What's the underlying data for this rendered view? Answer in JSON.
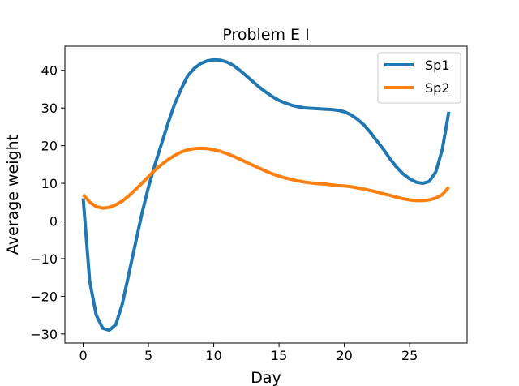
{
  "chart_data": {
    "type": "line",
    "title": "Problem E I",
    "xlabel": "Day",
    "ylabel": "Average weight",
    "xlim": [
      -1.4,
      29.4
    ],
    "ylim": [
      -32.4,
      46.4
    ],
    "x_ticks": [
      0,
      5,
      10,
      15,
      20,
      25
    ],
    "y_ticks": [
      -30,
      -20,
      -10,
      0,
      10,
      20,
      30,
      40
    ],
    "x_tick_labels": [
      "0",
      "5",
      "10",
      "15",
      "20",
      "25"
    ],
    "y_tick_labels": [
      "−30",
      "−20",
      "−10",
      "0",
      "10",
      "20",
      "30",
      "40"
    ],
    "grid": false,
    "legend_position": "upper right",
    "series": [
      {
        "name": "Sp1",
        "color": "#1f77b4",
        "points": [
          [
            0,
            6
          ],
          [
            0.5,
            -16
          ],
          [
            1,
            -25
          ],
          [
            1.5,
            -28.5
          ],
          [
            2,
            -29
          ],
          [
            2.5,
            -27.5
          ],
          [
            3,
            -22
          ],
          [
            3.5,
            -14
          ],
          [
            4,
            -6
          ],
          [
            4.5,
            2
          ],
          [
            5,
            9
          ],
          [
            5.5,
            15
          ],
          [
            6,
            20.5
          ],
          [
            6.5,
            26
          ],
          [
            7,
            31
          ],
          [
            7.5,
            35
          ],
          [
            8,
            38.5
          ],
          [
            8.5,
            40.5
          ],
          [
            9,
            41.8
          ],
          [
            9.5,
            42.5
          ],
          [
            10,
            42.8
          ],
          [
            10.5,
            42.7
          ],
          [
            11,
            42.2
          ],
          [
            11.5,
            41.3
          ],
          [
            12,
            40
          ],
          [
            12.5,
            38.5
          ],
          [
            13,
            37
          ],
          [
            13.5,
            35.5
          ],
          [
            14,
            34.2
          ],
          [
            14.5,
            33
          ],
          [
            15,
            32
          ],
          [
            15.5,
            31.3
          ],
          [
            16,
            30.7
          ],
          [
            16.5,
            30.3
          ],
          [
            17,
            30
          ],
          [
            17.5,
            29.9
          ],
          [
            18,
            29.8
          ],
          [
            18.5,
            29.7
          ],
          [
            19,
            29.6
          ],
          [
            19.5,
            29.4
          ],
          [
            20,
            29
          ],
          [
            20.5,
            28.2
          ],
          [
            21,
            27
          ],
          [
            21.5,
            25.5
          ],
          [
            22,
            23.5
          ],
          [
            22.5,
            21.2
          ],
          [
            23,
            19
          ],
          [
            23.5,
            16.5
          ],
          [
            24,
            14.3
          ],
          [
            24.5,
            12.5
          ],
          [
            25,
            11.2
          ],
          [
            25.5,
            10.3
          ],
          [
            26,
            10
          ],
          [
            26.5,
            10.5
          ],
          [
            27,
            13
          ],
          [
            27.5,
            19
          ],
          [
            28,
            29
          ]
        ]
      },
      {
        "name": "Sp2",
        "color": "#ff7f0e",
        "points": [
          [
            0,
            7
          ],
          [
            0.5,
            5
          ],
          [
            1,
            3.8
          ],
          [
            1.5,
            3.4
          ],
          [
            2,
            3.6
          ],
          [
            2.5,
            4.3
          ],
          [
            3,
            5.3
          ],
          [
            3.5,
            6.7
          ],
          [
            4,
            8.3
          ],
          [
            4.5,
            10
          ],
          [
            5,
            11.8
          ],
          [
            5.5,
            13.5
          ],
          [
            6,
            15
          ],
          [
            6.5,
            16.3
          ],
          [
            7,
            17.4
          ],
          [
            7.5,
            18.3
          ],
          [
            8,
            18.9
          ],
          [
            8.5,
            19.2
          ],
          [
            9,
            19.3
          ],
          [
            9.5,
            19.2
          ],
          [
            10,
            18.9
          ],
          [
            10.5,
            18.5
          ],
          [
            11,
            17.9
          ],
          [
            11.5,
            17.2
          ],
          [
            12,
            16.4
          ],
          [
            12.5,
            15.6
          ],
          [
            13,
            14.8
          ],
          [
            13.5,
            14
          ],
          [
            14,
            13.2
          ],
          [
            14.5,
            12.5
          ],
          [
            15,
            11.9
          ],
          [
            15.5,
            11.4
          ],
          [
            16,
            11
          ],
          [
            16.5,
            10.6
          ],
          [
            17,
            10.3
          ],
          [
            17.5,
            10.1
          ],
          [
            18,
            9.9
          ],
          [
            18.5,
            9.8
          ],
          [
            19,
            9.6
          ],
          [
            19.5,
            9.4
          ],
          [
            20,
            9.3
          ],
          [
            20.5,
            9.1
          ],
          [
            21,
            8.8
          ],
          [
            21.5,
            8.5
          ],
          [
            22,
            8.1
          ],
          [
            22.5,
            7.7
          ],
          [
            23,
            7.2
          ],
          [
            23.5,
            6.8
          ],
          [
            24,
            6.3
          ],
          [
            24.5,
            5.9
          ],
          [
            25,
            5.6
          ],
          [
            25.5,
            5.4
          ],
          [
            26,
            5.4
          ],
          [
            26.5,
            5.6
          ],
          [
            27,
            6.1
          ],
          [
            27.5,
            7
          ],
          [
            28,
            9
          ]
        ]
      }
    ]
  }
}
